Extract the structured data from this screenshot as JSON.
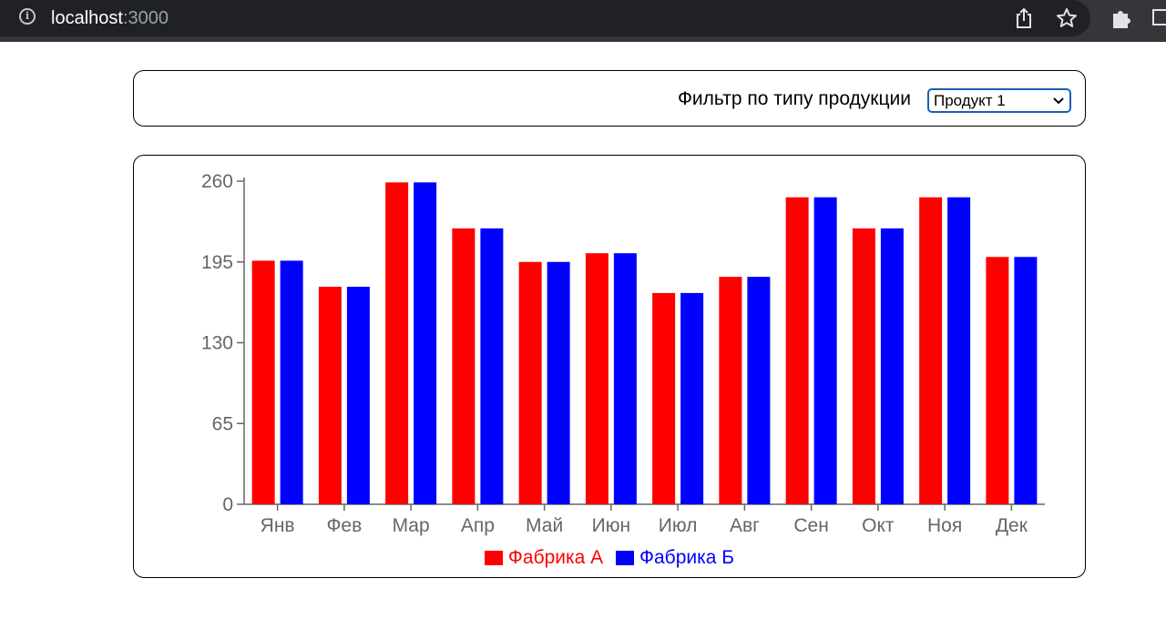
{
  "browser": {
    "url_host": "localhost",
    "url_port": ":3000"
  },
  "filter": {
    "label": "Фильтр по типу продукции",
    "selected": "Продукт 1"
  },
  "colors": {
    "series_a": "#ff0000",
    "series_b": "#0000ff",
    "tick_text": "#666666"
  },
  "chart_data": {
    "type": "bar",
    "categories": [
      "Янв",
      "Фев",
      "Мар",
      "Апр",
      "Май",
      "Июн",
      "Июл",
      "Авг",
      "Сен",
      "Окт",
      "Ноя",
      "Дек"
    ],
    "series": [
      {
        "name": "Фабрика А",
        "color": "#ff0000",
        "values": [
          196,
          175,
          259,
          222,
          195,
          202,
          170,
          183,
          247,
          222,
          247,
          199
        ]
      },
      {
        "name": "Фабрика Б",
        "color": "#0000ff",
        "values": [
          196,
          175,
          259,
          222,
          195,
          202,
          170,
          183,
          247,
          222,
          247,
          199
        ]
      }
    ],
    "yticks": [
      0,
      65,
      130,
      195,
      260
    ],
    "ylim": [
      0,
      260
    ],
    "legend": "bottom",
    "grid": false
  }
}
